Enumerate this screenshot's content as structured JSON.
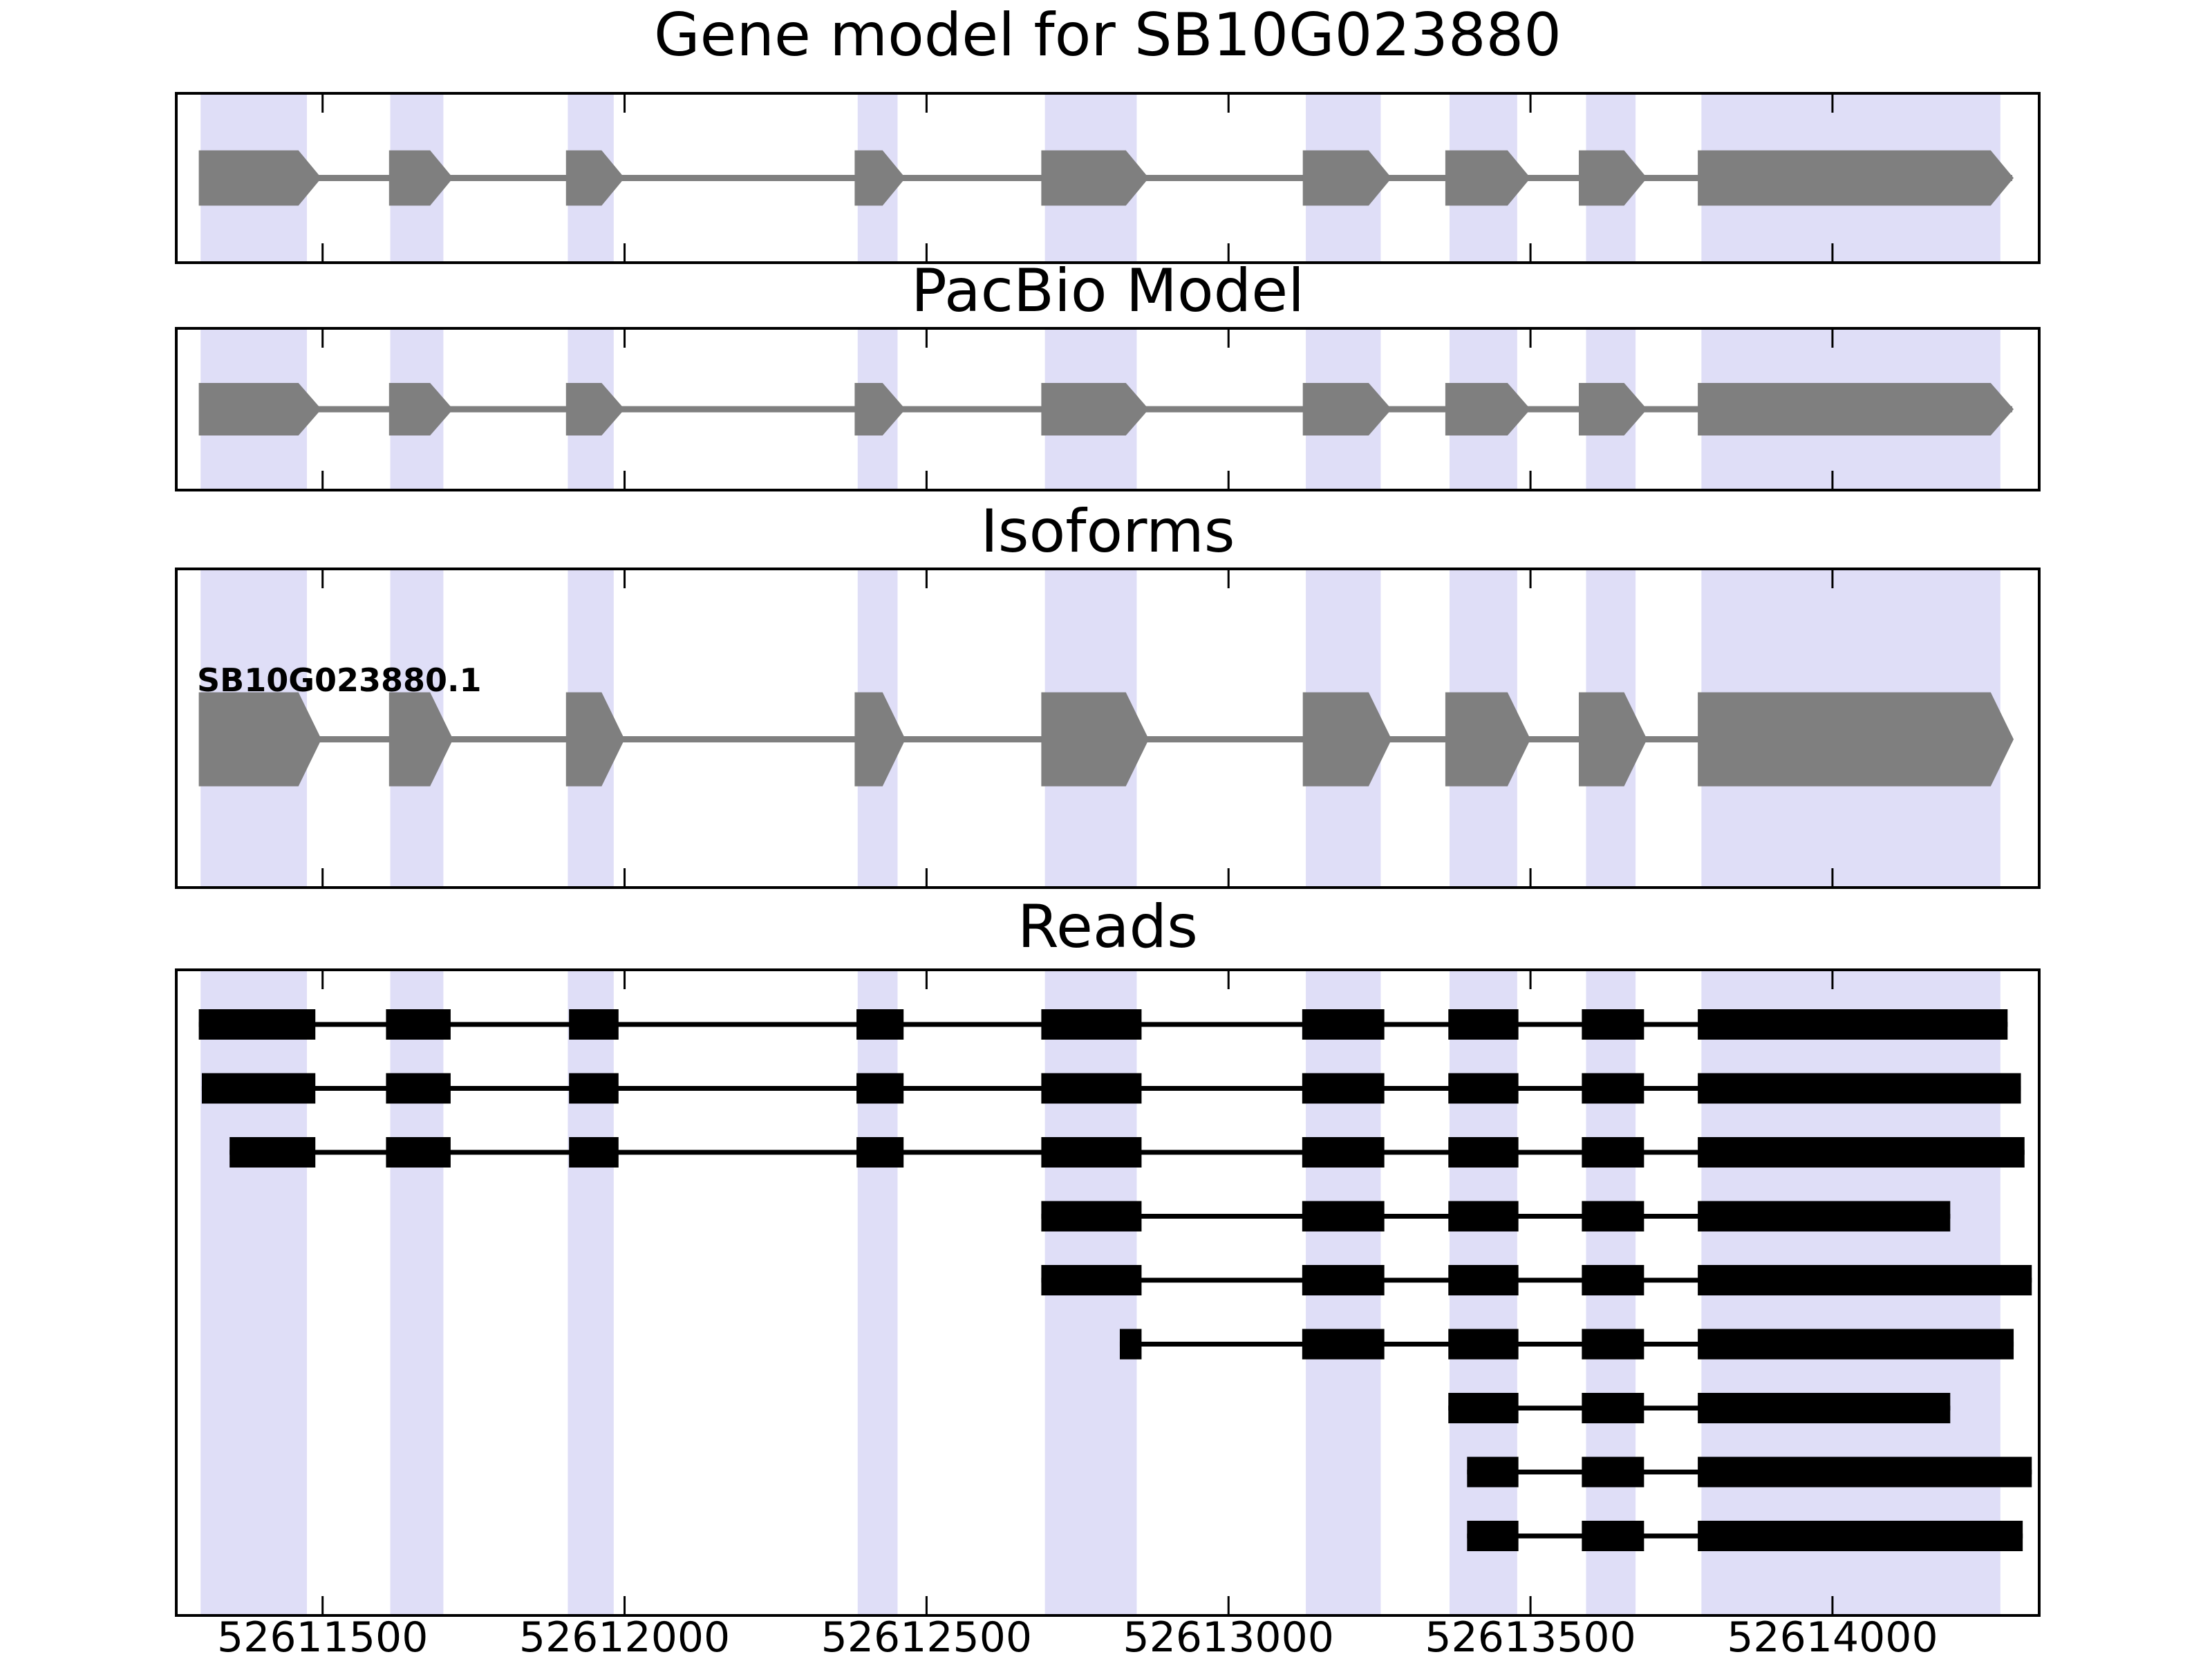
{
  "chart_data": {
    "type": "gene-model-tracks",
    "title": "Gene model for SB10G023880",
    "gene_id": "SB10G023880",
    "strand": "forward",
    "panels": {
      "gene_model": {
        "title": "Gene model for SB10G023880"
      },
      "pacbio": {
        "title": "PacBio Model"
      },
      "isoforms": {
        "title": "Isoforms",
        "isoform_label": "SB10G023880.1"
      },
      "reads": {
        "title": "Reads"
      }
    },
    "x_axis": {
      "xmin": 52611260,
      "xmax": 52614340,
      "ticks": [
        {
          "bp": 52611500,
          "label": "52611500"
        },
        {
          "bp": 52612000,
          "label": "52612000"
        },
        {
          "bp": 52612500,
          "label": "52612500"
        },
        {
          "bp": 52613000,
          "label": "52613000"
        },
        {
          "bp": 52613500,
          "label": "52613500"
        },
        {
          "bp": 52614000,
          "label": "52614000"
        }
      ]
    },
    "exons": [
      [
        52611295,
        52611498
      ],
      [
        52611610,
        52611716
      ],
      [
        52611903,
        52612000
      ],
      [
        52612381,
        52612465
      ],
      [
        52612690,
        52612868
      ],
      [
        52613123,
        52613270
      ],
      [
        52613359,
        52613500
      ],
      [
        52613580,
        52613693
      ],
      [
        52613777,
        52614300
      ]
    ],
    "highlight_bands": [
      [
        52611298,
        52611474
      ],
      [
        52611612,
        52611700
      ],
      [
        52611906,
        52611982
      ],
      [
        52612386,
        52612452
      ],
      [
        52612696,
        52612848
      ],
      [
        52613128,
        52613252
      ],
      [
        52613366,
        52613478
      ],
      [
        52613592,
        52613674
      ],
      [
        52613783,
        52614278
      ]
    ],
    "reads": [
      {
        "blocks": [
          [
            52611295,
            52611488
          ],
          [
            52611605,
            52611712
          ],
          [
            52611908,
            52611990
          ],
          [
            52612384,
            52612462
          ],
          [
            52612690,
            52612856
          ],
          [
            52613122,
            52613258
          ],
          [
            52613364,
            52613480
          ],
          [
            52613585,
            52613688
          ],
          [
            52613777,
            52614290
          ]
        ]
      },
      {
        "blocks": [
          [
            52611300,
            52611488
          ],
          [
            52611605,
            52611712
          ],
          [
            52611908,
            52611990
          ],
          [
            52612384,
            52612462
          ],
          [
            52612690,
            52612856
          ],
          [
            52613122,
            52613258
          ],
          [
            52613364,
            52613480
          ],
          [
            52613585,
            52613688
          ],
          [
            52613777,
            52614312
          ]
        ]
      },
      {
        "blocks": [
          [
            52611346,
            52611488
          ],
          [
            52611605,
            52611712
          ],
          [
            52611908,
            52611990
          ],
          [
            52612384,
            52612462
          ],
          [
            52612690,
            52612856
          ],
          [
            52613122,
            52613258
          ],
          [
            52613364,
            52613480
          ],
          [
            52613585,
            52613688
          ],
          [
            52613777,
            52614318
          ]
        ]
      },
      {
        "blocks": [
          [
            52612690,
            52612856
          ],
          [
            52613122,
            52613258
          ],
          [
            52613364,
            52613480
          ],
          [
            52613585,
            52613688
          ],
          [
            52613777,
            52614195
          ]
        ]
      },
      {
        "blocks": [
          [
            52612690,
            52612856
          ],
          [
            52613122,
            52613258
          ],
          [
            52613364,
            52613480
          ],
          [
            52613585,
            52613688
          ],
          [
            52613777,
            52614330
          ]
        ]
      },
      {
        "blocks": [
          [
            52612820,
            52612856
          ],
          [
            52613122,
            52613258
          ],
          [
            52613364,
            52613480
          ],
          [
            52613585,
            52613688
          ],
          [
            52613777,
            52614300
          ]
        ]
      },
      {
        "blocks": [
          [
            52613364,
            52613480
          ],
          [
            52613585,
            52613688
          ],
          [
            52613777,
            52614195
          ]
        ]
      },
      {
        "blocks": [
          [
            52613395,
            52613480
          ],
          [
            52613585,
            52613688
          ],
          [
            52613777,
            52614330
          ]
        ]
      },
      {
        "blocks": [
          [
            52613395,
            52613480
          ],
          [
            52613585,
            52613688
          ],
          [
            52613777,
            52614315
          ]
        ]
      }
    ],
    "colors": {
      "highlight_band": "#dfdef7",
      "gene_model_fill": "#7f7f7f",
      "read_fill": "#000000",
      "panel_border": "#000000",
      "text": "#000000"
    }
  }
}
